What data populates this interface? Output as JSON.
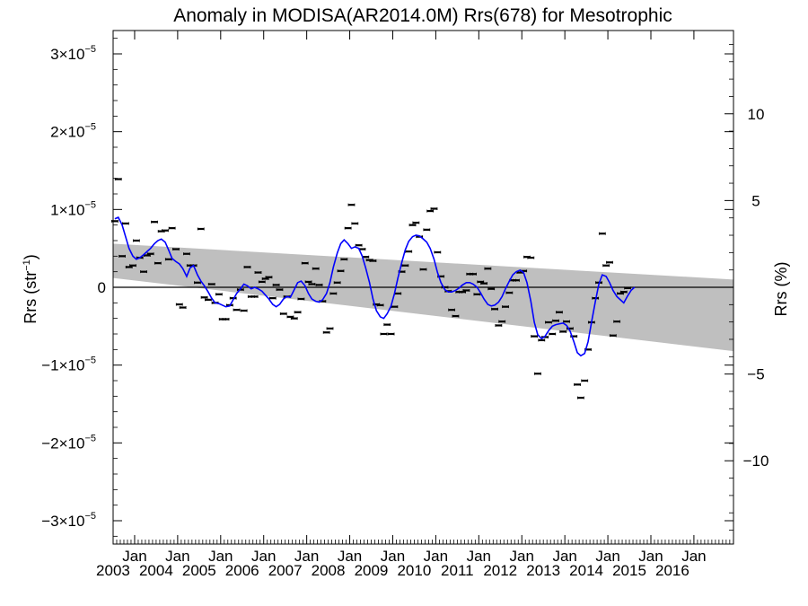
{
  "chart_data": {
    "type": "line",
    "title": "Anomaly in MODISA(AR2014.0M) Rrs(678) for Mesotrophic",
    "ylabel": {
      "base": "Rrs (str",
      "exp": "−1",
      "close": ")"
    },
    "ylabel_right": "Rrs (%)",
    "ylim": [
      -3.3e-05,
      3.3e-05
    ],
    "ylim_right": [
      -14.8,
      14.8
    ],
    "xlim": [
      2002.5,
      2016.92
    ],
    "y_ticks": [
      {
        "value": -3e-05,
        "mantissa": "−3×10",
        "exp": "−5"
      },
      {
        "value": -2e-05,
        "mantissa": "−2×10",
        "exp": "−5"
      },
      {
        "value": -1e-05,
        "mantissa": "−1×10",
        "exp": "−5"
      },
      {
        "value": 0,
        "mantissa": "0",
        "exp": ""
      },
      {
        "value": 1e-05,
        "mantissa": "1×10",
        "exp": "−5"
      },
      {
        "value": 2e-05,
        "mantissa": "2×10",
        "exp": "−5"
      },
      {
        "value": 3e-05,
        "mantissa": "3×10",
        "exp": "−5"
      }
    ],
    "y_ticks_right": [
      {
        "value": -10,
        "label": "−10"
      },
      {
        "value": -5,
        "label": "−5"
      },
      {
        "value": 5,
        "label": "5"
      },
      {
        "value": 10,
        "label": "10"
      }
    ],
    "x_ticks": [
      {
        "value": 2003.0,
        "month": "Jan",
        "year": "2003"
      },
      {
        "value": 2004.0,
        "month": "Jan",
        "year": "2004"
      },
      {
        "value": 2005.0,
        "month": "Jan",
        "year": "2005"
      },
      {
        "value": 2006.0,
        "month": "Jan",
        "year": "2006"
      },
      {
        "value": 2007.0,
        "month": "Jan",
        "year": "2007"
      },
      {
        "value": 2008.0,
        "month": "Jan",
        "year": "2008"
      },
      {
        "value": 2009.0,
        "month": "Jan",
        "year": "2009"
      },
      {
        "value": 2010.0,
        "month": "Jan",
        "year": "2010"
      },
      {
        "value": 2011.0,
        "month": "Jan",
        "year": "2011"
      },
      {
        "value": 2012.0,
        "month": "Jan",
        "year": "2012"
      },
      {
        "value": 2013.0,
        "month": "Jan",
        "year": "2013"
      },
      {
        "value": 2014.0,
        "month": "Jan",
        "year": "2014"
      },
      {
        "value": 2015.0,
        "month": "Jan",
        "year": "2015"
      },
      {
        "value": 2016.0,
        "month": "Jan",
        "year": "2016"
      }
    ],
    "trend_band": {
      "start_x": 2002.5,
      "end_x": 2016.92,
      "upper_start": 5.6e-06,
      "upper_end": 1e-06,
      "lower_start": 1.2e-06,
      "lower_end": -8.2e-06
    },
    "zero_line": 0,
    "colors": {
      "band": "#bfbfbf",
      "smooth": "#0000ff",
      "points": "#000000"
    },
    "monthly_points": [
      [
        2002.54,
        8.5e-06
      ],
      [
        2002.62,
        1.39e-05
      ],
      [
        2002.71,
        4e-06
      ],
      [
        2002.79,
        8.2e-06
      ],
      [
        2002.87,
        2.6e-06
      ],
      [
        2002.96,
        2.8e-06
      ],
      [
        2003.04,
        6e-06
      ],
      [
        2003.12,
        3.8e-06
      ],
      [
        2003.21,
        2e-06
      ],
      [
        2003.29,
        4.1e-06
      ],
      [
        2003.37,
        4.3e-06
      ],
      [
        2003.46,
        8.4e-06
      ],
      [
        2003.54,
        3.1e-06
      ],
      [
        2003.62,
        7.2e-06
      ],
      [
        2003.71,
        7.3e-06
      ],
      [
        2003.79,
        3.6e-06
      ],
      [
        2003.87,
        7.6e-06
      ],
      [
        2003.96,
        4.9e-06
      ],
      [
        2004.04,
        -2.2e-06
      ],
      [
        2004.12,
        -2.6e-06
      ],
      [
        2004.21,
        4.3e-06
      ],
      [
        2004.29,
        2.8e-06
      ],
      [
        2004.37,
        2.8e-06
      ],
      [
        2004.46,
        6e-07
      ],
      [
        2004.54,
        7.5e-06
      ],
      [
        2004.62,
        -1.3e-06
      ],
      [
        2004.71,
        -1.6e-06
      ],
      [
        2004.79,
        4e-07
      ],
      [
        2004.87,
        -2e-06
      ],
      [
        2004.96,
        -9e-07
      ],
      [
        2005.04,
        -4.1e-06
      ],
      [
        2005.12,
        -4.1e-06
      ],
      [
        2005.21,
        -2.3e-06
      ],
      [
        2005.29,
        -1.4e-06
      ],
      [
        2005.37,
        -2.9e-06
      ],
      [
        2005.46,
        -3e-07
      ],
      [
        2005.54,
        -3e-06
      ],
      [
        2005.62,
        2.6e-06
      ],
      [
        2005.71,
        -1.2e-06
      ],
      [
        2005.79,
        -1.2e-06
      ],
      [
        2005.87,
        1.9e-06
      ],
      [
        2005.96,
        7e-07
      ],
      [
        2006.04,
        1.1e-06
      ],
      [
        2006.12,
        1.3e-06
      ],
      [
        2006.21,
        -1.4e-06
      ],
      [
        2006.29,
        3e-07
      ],
      [
        2006.37,
        -3e-07
      ],
      [
        2006.46,
        -3.4e-06
      ],
      [
        2006.54,
        -1.2e-06
      ],
      [
        2006.62,
        -3.8e-06
      ],
      [
        2006.71,
        -4e-06
      ],
      [
        2006.79,
        -3.2e-06
      ],
      [
        2006.87,
        -1.5e-06
      ],
      [
        2006.96,
        3.1e-06
      ],
      [
        2007.04,
        7e-07
      ],
      [
        2007.12,
        4e-07
      ],
      [
        2007.21,
        2.4e-06
      ],
      [
        2007.29,
        3e-07
      ],
      [
        2007.37,
        -1.8e-06
      ],
      [
        2007.46,
        -5.8e-06
      ],
      [
        2007.54,
        -5.3e-06
      ],
      [
        2007.62,
        -8e-07
      ],
      [
        2007.71,
        6e-07
      ],
      [
        2007.79,
        2.1e-06
      ],
      [
        2007.87,
        3.6e-06
      ],
      [
        2007.96,
        7.6e-06
      ],
      [
        2008.04,
        1.06e-05
      ],
      [
        2008.12,
        8.2e-06
      ],
      [
        2008.21,
        5.4e-06
      ],
      [
        2008.29,
        4.9e-06
      ],
      [
        2008.37,
        3.9e-06
      ],
      [
        2008.46,
        3.5e-06
      ],
      [
        2008.54,
        3.4e-06
      ],
      [
        2008.62,
        -2.2e-06
      ],
      [
        2008.71,
        -2.3e-06
      ],
      [
        2008.79,
        -6e-06
      ],
      [
        2008.87,
        -4.8e-06
      ],
      [
        2008.96,
        -6e-06
      ],
      [
        2009.04,
        -2.5e-06
      ],
      [
        2009.12,
        -8e-07
      ],
      [
        2009.21,
        2e-06
      ],
      [
        2009.29,
        2.8e-06
      ],
      [
        2009.37,
        4.6e-06
      ],
      [
        2009.46,
        8e-06
      ],
      [
        2009.54,
        8.3e-06
      ],
      [
        2009.62,
        6.5e-06
      ],
      [
        2009.71,
        2.3e-06
      ],
      [
        2009.79,
        7.4e-06
      ],
      [
        2009.87,
        9.8e-06
      ],
      [
        2009.96,
        1.01e-05
      ],
      [
        2010.04,
        4.5e-06
      ],
      [
        2010.12,
        1.4e-06
      ],
      [
        2010.21,
        0.0
      ],
      [
        2010.29,
        -5e-07
      ],
      [
        2010.37,
        -2.9e-06
      ],
      [
        2010.46,
        -3.7e-06
      ],
      [
        2010.54,
        -6e-07
      ],
      [
        2010.62,
        -6e-07
      ],
      [
        2010.71,
        -4e-07
      ],
      [
        2010.79,
        1.7e-06
      ],
      [
        2010.87,
        1.7e-06
      ],
      [
        2010.96,
        -9e-07
      ],
      [
        2011.04,
        7e-07
      ],
      [
        2011.12,
        5e-07
      ],
      [
        2011.21,
        2.4e-06
      ],
      [
        2011.29,
        -2e-07
      ],
      [
        2011.37,
        -2.8e-06
      ],
      [
        2011.46,
        -4.9e-06
      ],
      [
        2011.54,
        -4.4e-06
      ],
      [
        2011.62,
        -2.5e-06
      ],
      [
        2011.71,
        -7e-07
      ],
      [
        2011.79,
        9e-07
      ],
      [
        2011.87,
        9e-07
      ],
      [
        2011.96,
        1.9e-06
      ],
      [
        2012.04,
        2.1e-06
      ],
      [
        2012.12,
        3.9e-06
      ],
      [
        2012.21,
        3.8e-06
      ],
      [
        2012.29,
        -6.3e-06
      ],
      [
        2012.37,
        -1.11e-05
      ],
      [
        2012.46,
        -6.8e-06
      ],
      [
        2012.54,
        -6.4e-06
      ],
      [
        2012.62,
        -4.5e-06
      ],
      [
        2012.71,
        -6e-06
      ],
      [
        2012.79,
        -4.3e-06
      ],
      [
        2012.87,
        -3.2e-06
      ],
      [
        2012.96,
        -5.7e-06
      ],
      [
        2013.04,
        -4.4e-06
      ],
      [
        2013.12,
        -5.3e-06
      ],
      [
        2013.21,
        -6.3e-06
      ],
      [
        2013.29,
        -1.25e-05
      ],
      [
        2013.37,
        -1.42e-05
      ],
      [
        2013.46,
        -1.2e-05
      ],
      [
        2013.54,
        -8e-06
      ],
      [
        2013.62,
        -4.5e-06
      ],
      [
        2013.71,
        -1.4e-06
      ],
      [
        2013.79,
        6e-07
      ],
      [
        2013.87,
        6.9e-06
      ],
      [
        2013.96,
        2.8e-06
      ],
      [
        2014.04,
        3.2e-06
      ],
      [
        2014.12,
        -6.2e-06
      ],
      [
        2014.21,
        -4.4e-06
      ],
      [
        2014.29,
        -8e-07
      ],
      [
        2014.37,
        -6e-07
      ],
      [
        2014.46,
        -1e-07
      ]
    ],
    "smoothed": [
      [
        2002.54,
        8.8e-06
      ],
      [
        2002.62,
        9e-06
      ],
      [
        2002.71,
        8e-06
      ],
      [
        2002.79,
        6.5e-06
      ],
      [
        2002.87,
        5e-06
      ],
      [
        2002.96,
        4e-06
      ],
      [
        2003.04,
        3.6e-06
      ],
      [
        2003.12,
        3.8e-06
      ],
      [
        2003.21,
        4.2e-06
      ],
      [
        2003.29,
        4.6e-06
      ],
      [
        2003.37,
        5e-06
      ],
      [
        2003.46,
        5.6e-06
      ],
      [
        2003.54,
        6e-06
      ],
      [
        2003.62,
        6.2e-06
      ],
      [
        2003.71,
        5.8e-06
      ],
      [
        2003.79,
        4.8e-06
      ],
      [
        2003.87,
        3.7e-06
      ],
      [
        2003.96,
        3.3e-06
      ],
      [
        2004.04,
        3e-06
      ],
      [
        2004.12,
        2.4e-06
      ],
      [
        2004.21,
        1.4e-06
      ],
      [
        2004.29,
        2.5e-06
      ],
      [
        2004.37,
        2.8e-06
      ],
      [
        2004.46,
        1.6e-06
      ],
      [
        2004.54,
        8e-07
      ],
      [
        2004.62,
        2e-07
      ],
      [
        2004.71,
        -6e-07
      ],
      [
        2004.79,
        -1.4e-06
      ],
      [
        2004.87,
        -2e-06
      ],
      [
        2004.96,
        -2.1e-06
      ],
      [
        2005.04,
        -2.3e-06
      ],
      [
        2005.12,
        -2.5e-06
      ],
      [
        2005.21,
        -2.4e-06
      ],
      [
        2005.29,
        -1.6e-06
      ],
      [
        2005.37,
        -8e-07
      ],
      [
        2005.46,
        -2e-07
      ],
      [
        2005.54,
        4e-07
      ],
      [
        2005.62,
        2e-07
      ],
      [
        2005.71,
        -2e-07
      ],
      [
        2005.79,
        0.0
      ],
      [
        2005.87,
        -2e-07
      ],
      [
        2005.96,
        -5e-07
      ],
      [
        2006.04,
        -1e-06
      ],
      [
        2006.12,
        -1.5e-06
      ],
      [
        2006.21,
        -2.2e-06
      ],
      [
        2006.29,
        -2.5e-06
      ],
      [
        2006.37,
        -2.2e-06
      ],
      [
        2006.46,
        -1.5e-06
      ],
      [
        2006.54,
        -1.2e-06
      ],
      [
        2006.62,
        -1.3e-06
      ],
      [
        2006.71,
        -3e-07
      ],
      [
        2006.79,
        6e-07
      ],
      [
        2006.87,
        8e-07
      ],
      [
        2006.96,
        2e-07
      ],
      [
        2007.04,
        -8e-07
      ],
      [
        2007.12,
        -1.5e-06
      ],
      [
        2007.21,
        -1.8e-06
      ],
      [
        2007.29,
        -1.9e-06
      ],
      [
        2007.37,
        -1.6e-06
      ],
      [
        2007.46,
        -8e-07
      ],
      [
        2007.54,
        6e-07
      ],
      [
        2007.62,
        2.6e-06
      ],
      [
        2007.71,
        4.4e-06
      ],
      [
        2007.79,
        5.6e-06
      ],
      [
        2007.87,
        6.1e-06
      ],
      [
        2007.96,
        5.6e-06
      ],
      [
        2008.04,
        5e-06
      ],
      [
        2008.12,
        5.2e-06
      ],
      [
        2008.21,
        5e-06
      ],
      [
        2008.29,
        4e-06
      ],
      [
        2008.37,
        2.5e-06
      ],
      [
        2008.46,
        6e-07
      ],
      [
        2008.54,
        -1.5e-06
      ],
      [
        2008.62,
        -3e-06
      ],
      [
        2008.71,
        -3.8e-06
      ],
      [
        2008.79,
        -4e-06
      ],
      [
        2008.87,
        -3.4e-06
      ],
      [
        2008.96,
        -2.4e-06
      ],
      [
        2009.04,
        -8e-07
      ],
      [
        2009.12,
        1.2e-06
      ],
      [
        2009.21,
        3.2e-06
      ],
      [
        2009.29,
        4.8e-06
      ],
      [
        2009.37,
        5.9e-06
      ],
      [
        2009.46,
        6.5e-06
      ],
      [
        2009.54,
        6.7e-06
      ],
      [
        2009.62,
        6.6e-06
      ],
      [
        2009.71,
        6.2e-06
      ],
      [
        2009.79,
        5.8e-06
      ],
      [
        2009.87,
        5e-06
      ],
      [
        2009.96,
        3.6e-06
      ],
      [
        2010.04,
        1.9e-06
      ],
      [
        2010.12,
        6e-07
      ],
      [
        2010.21,
        -3e-07
      ],
      [
        2010.29,
        -6e-07
      ],
      [
        2010.37,
        -6e-07
      ],
      [
        2010.46,
        -4e-07
      ],
      [
        2010.54,
        -1e-07
      ],
      [
        2010.62,
        3e-07
      ],
      [
        2010.71,
        6e-07
      ],
      [
        2010.79,
        6e-07
      ],
      [
        2010.87,
        4e-07
      ],
      [
        2010.96,
        0.0
      ],
      [
        2011.04,
        -7e-07
      ],
      [
        2011.12,
        -1.5e-06
      ],
      [
        2011.21,
        -2.2e-06
      ],
      [
        2011.29,
        -2.4e-06
      ],
      [
        2011.37,
        -2.3e-06
      ],
      [
        2011.46,
        -1.9e-06
      ],
      [
        2011.54,
        -1.2e-06
      ],
      [
        2011.62,
        -2e-07
      ],
      [
        2011.71,
        8e-07
      ],
      [
        2011.79,
        1.6e-06
      ],
      [
        2011.87,
        2e-06
      ],
      [
        2011.96,
        2.2e-06
      ],
      [
        2012.04,
        1.9e-06
      ],
      [
        2012.12,
        6e-07
      ],
      [
        2012.21,
        -1.8e-06
      ],
      [
        2012.29,
        -4.5e-06
      ],
      [
        2012.37,
        -6.1e-06
      ],
      [
        2012.46,
        -6.6e-06
      ],
      [
        2012.54,
        -6.3e-06
      ],
      [
        2012.62,
        -5.6e-06
      ],
      [
        2012.71,
        -5e-06
      ],
      [
        2012.79,
        -4.8e-06
      ],
      [
        2012.87,
        -4.7e-06
      ],
      [
        2012.96,
        -4.6e-06
      ],
      [
        2013.04,
        -4.9e-06
      ],
      [
        2013.12,
        -5.6e-06
      ],
      [
        2013.21,
        -7e-06
      ],
      [
        2013.29,
        -8.4e-06
      ],
      [
        2013.37,
        -8.8e-06
      ],
      [
        2013.46,
        -8.5e-06
      ],
      [
        2013.54,
        -7e-06
      ],
      [
        2013.62,
        -4.5e-06
      ],
      [
        2013.71,
        -1.8e-06
      ],
      [
        2013.79,
        4e-07
      ],
      [
        2013.87,
        1.6e-06
      ],
      [
        2013.96,
        1.4e-06
      ],
      [
        2014.04,
        6e-07
      ],
      [
        2014.12,
        -4e-07
      ],
      [
        2014.21,
        -1.2e-06
      ],
      [
        2014.29,
        -1.6e-06
      ],
      [
        2014.37,
        -2e-06
      ],
      [
        2014.46,
        -1.1e-06
      ],
      [
        2014.54,
        -4e-07
      ],
      [
        2014.62,
        0.0
      ]
    ]
  }
}
